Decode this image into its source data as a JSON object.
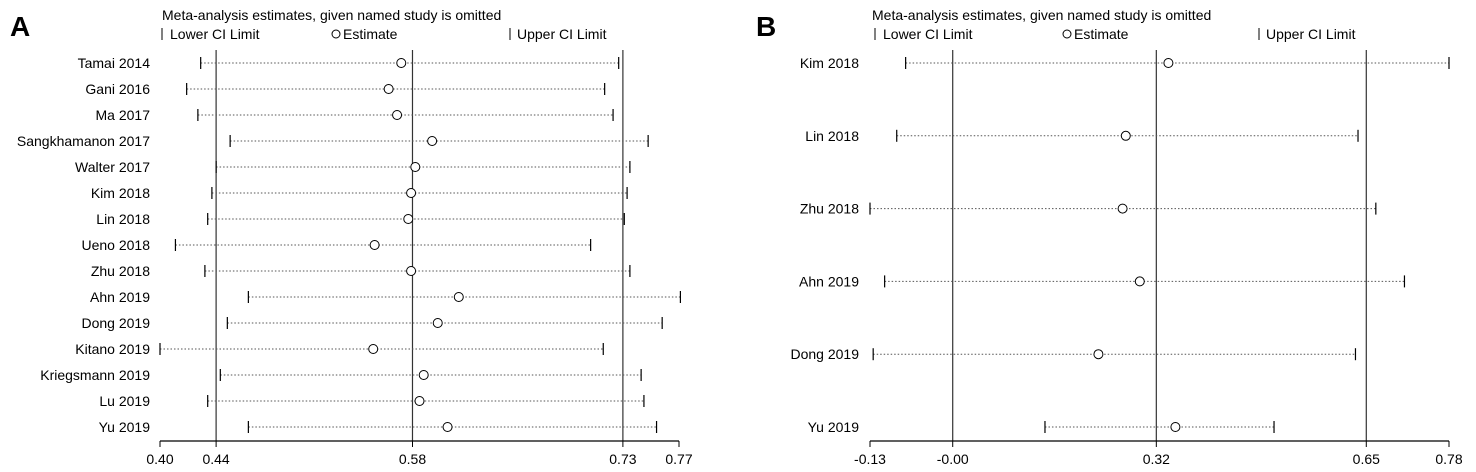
{
  "chart_data": [
    {
      "panel_label": "A",
      "type": "forest-sensitivity",
      "title": "Meta-analysis estimates, given named study is omitted",
      "legend": {
        "lower": "Lower CI Limit",
        "estimate": "Estimate",
        "upper": "Upper CI Limit"
      },
      "xlim": [
        0.4,
        0.77
      ],
      "tick_values": [
        0.4,
        0.44,
        0.58,
        0.73,
        0.77
      ],
      "tick_labels": [
        "0.40",
        "0.44",
        "0.58",
        "0.73",
        "0.77"
      ],
      "reference_lines": [
        0.44,
        0.58,
        0.73
      ],
      "studies": [
        {
          "name": "Tamai 2014",
          "lower": 0.429,
          "estimate": 0.572,
          "upper": 0.727
        },
        {
          "name": "Gani 2016",
          "lower": 0.419,
          "estimate": 0.563,
          "upper": 0.717
        },
        {
          "name": "Ma 2017",
          "lower": 0.427,
          "estimate": 0.569,
          "upper": 0.723
        },
        {
          "name": "Sangkhamanon 2017",
          "lower": 0.45,
          "estimate": 0.594,
          "upper": 0.748
        },
        {
          "name": "Walter 2017",
          "lower": 0.44,
          "estimate": 0.582,
          "upper": 0.735
        },
        {
          "name": "Kim 2018",
          "lower": 0.437,
          "estimate": 0.579,
          "upper": 0.733
        },
        {
          "name": "Lin 2018",
          "lower": 0.434,
          "estimate": 0.577,
          "upper": 0.731
        },
        {
          "name": "Ueno 2018",
          "lower": 0.411,
          "estimate": 0.553,
          "upper": 0.707
        },
        {
          "name": "Zhu 2018",
          "lower": 0.432,
          "estimate": 0.579,
          "upper": 0.735
        },
        {
          "name": "Ahn 2019",
          "lower": 0.463,
          "estimate": 0.613,
          "upper": 0.771
        },
        {
          "name": "Dong 2019",
          "lower": 0.448,
          "estimate": 0.598,
          "upper": 0.758
        },
        {
          "name": "Kitano 2019",
          "lower": 0.4,
          "estimate": 0.552,
          "upper": 0.716
        },
        {
          "name": "Kriegsmann 2019",
          "lower": 0.443,
          "estimate": 0.588,
          "upper": 0.743
        },
        {
          "name": "Lu 2019",
          "lower": 0.434,
          "estimate": 0.585,
          "upper": 0.745
        },
        {
          "name": "Yu 2019",
          "lower": 0.463,
          "estimate": 0.605,
          "upper": 0.754
        }
      ]
    },
    {
      "panel_label": "B",
      "type": "forest-sensitivity",
      "title": "Meta-analysis estimates, given named study is omitted",
      "legend": {
        "lower": "Lower CI Limit",
        "estimate": "Estimate",
        "upper": "Upper CI Limit"
      },
      "xlim": [
        -0.13,
        0.78
      ],
      "tick_values": [
        -0.13,
        0.0,
        0.32,
        0.65,
        0.78
      ],
      "tick_labels": [
        "-0.13",
        "-0.00",
        "0.32",
        "0.65",
        "0.78"
      ],
      "reference_lines": [
        0.0,
        0.32,
        0.65
      ],
      "studies": [
        {
          "name": "Kim 2018",
          "lower": -0.074,
          "estimate": 0.339,
          "upper": 0.78
        },
        {
          "name": "Lin 2018",
          "lower": -0.088,
          "estimate": 0.272,
          "upper": 0.637
        },
        {
          "name": "Zhu 2018",
          "lower": -0.13,
          "estimate": 0.267,
          "upper": 0.665
        },
        {
          "name": "Ahn 2019",
          "lower": -0.107,
          "estimate": 0.294,
          "upper": 0.71
        },
        {
          "name": "Dong 2019",
          "lower": -0.125,
          "estimate": 0.229,
          "upper": 0.633
        },
        {
          "name": "Yu 2019",
          "lower": 0.145,
          "estimate": 0.35,
          "upper": 0.505
        }
      ]
    }
  ]
}
